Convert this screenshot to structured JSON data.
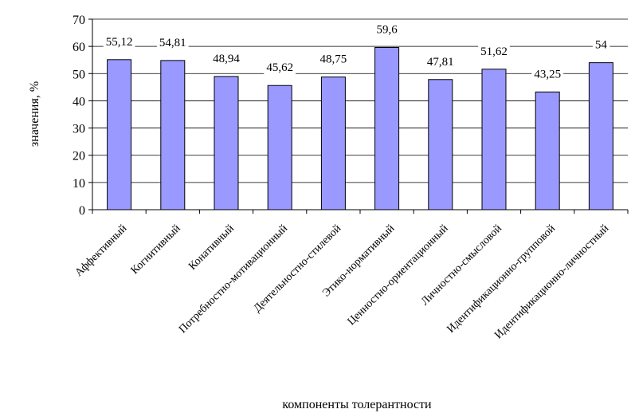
{
  "chart_data": {
    "type": "bar",
    "categories": [
      "Аффективный",
      "Когнитивный",
      "Конативный",
      "Потребностно-мотивационный",
      "Деятельностно-стилевой",
      "Этико-нормативный",
      "Ценностно-ориентационный",
      "Личностно-смысловой",
      "Идентификационно-групповой",
      "Идентификационно-личностный"
    ],
    "values": [
      55.12,
      54.81,
      48.94,
      45.62,
      48.75,
      59.6,
      47.81,
      51.62,
      43.25,
      54
    ],
    "value_labels": [
      "55,12",
      "54,81",
      "48,94",
      "45,62",
      "48,75",
      "59,6",
      "47,81",
      "51,62",
      "43,25",
      "54"
    ],
    "xlabel": "компоненты толерантности",
    "ylabel": "значения, %",
    "ylim": [
      0,
      70
    ],
    "yticks": [
      0,
      10,
      20,
      30,
      40,
      50,
      60,
      70
    ],
    "grid": true,
    "legend": "none",
    "colors": {
      "bar_fill": "#9999ff",
      "bar_stroke": "#000000",
      "grid": "#000000"
    }
  }
}
